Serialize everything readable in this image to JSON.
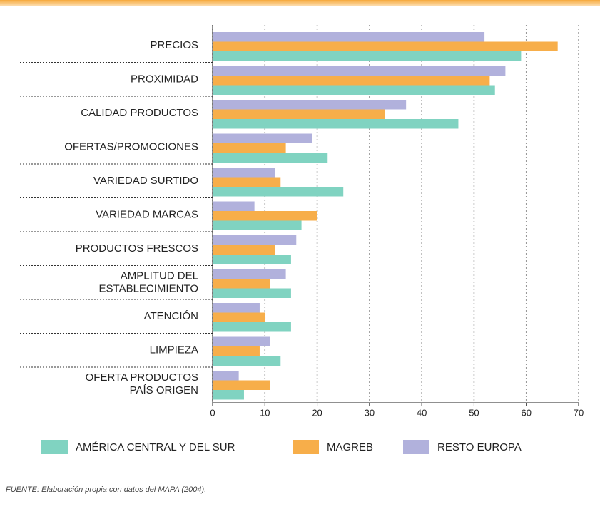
{
  "chart_data": {
    "type": "barh",
    "categories": [
      "PRECIOS",
      "PROXIMIDAD",
      "CALIDAD PRODUCTOS",
      "OFERTAS/PROMOCIONES",
      "VARIEDAD SURTIDO",
      "VARIEDAD MARCAS",
      "PRODUCTOS FRESCOS",
      "AMPLITUD DEL\nESTABLECIMIENTO",
      "ATENCIÓN",
      "LIMPIEZA",
      "OFERTA PRODUCTOS\nPAÍS ORIGEN"
    ],
    "series": [
      {
        "name": "RESTO EUROPA",
        "color": "#b1b1dc",
        "values": [
          52,
          56,
          37,
          19,
          12,
          8,
          16,
          14,
          9,
          11,
          5
        ]
      },
      {
        "name": "MAGREB",
        "color": "#f7ae4a",
        "values": [
          66,
          53,
          33,
          14,
          13,
          20,
          12,
          11,
          10,
          9,
          11
        ]
      },
      {
        "name": "AMÉRICA CENTRAL Y DEL SUR",
        "color": "#80d3c1",
        "values": [
          59,
          54,
          47,
          22,
          25,
          17,
          15,
          15,
          15,
          13,
          6
        ]
      }
    ],
    "legend_order": [
      2,
      1,
      0
    ],
    "xlim": [
      0,
      70
    ],
    "xticks": [
      0,
      10,
      20,
      30,
      40,
      50,
      60,
      70
    ],
    "grid": true,
    "legend": "bottom",
    "source": "FUENTE: Elaboración propia con datos del MAPA (2004)."
  }
}
